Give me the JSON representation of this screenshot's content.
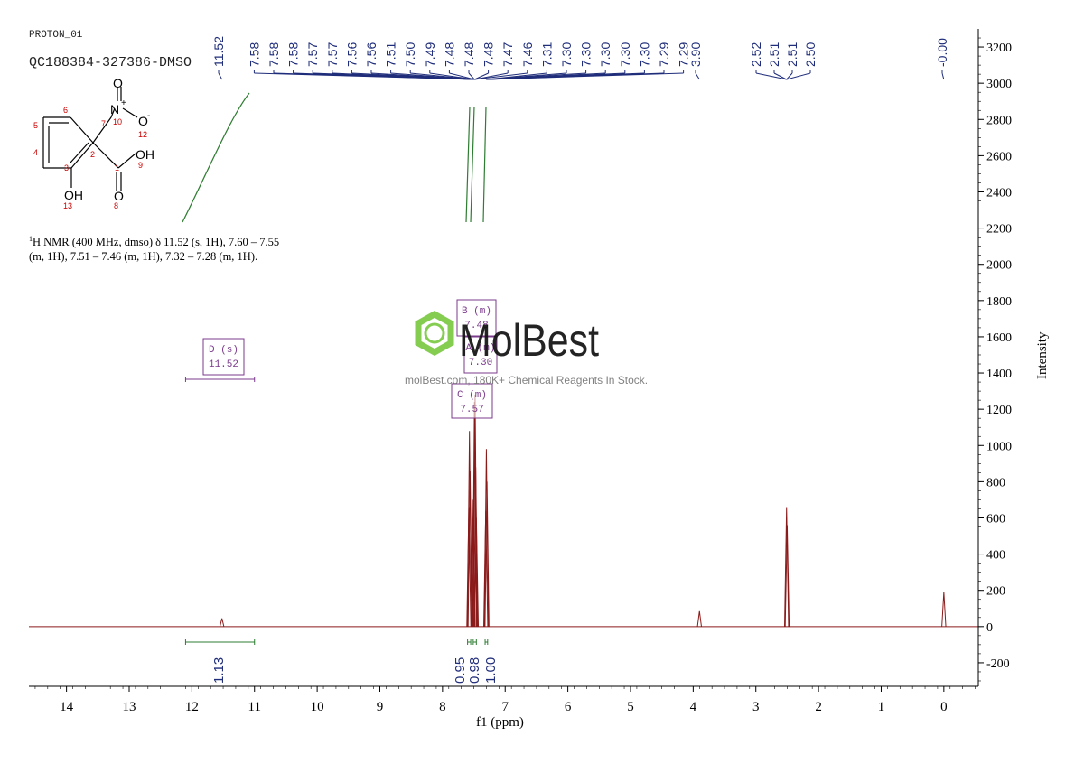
{
  "header": {
    "sample_name": "PROTON_01",
    "sample_id": "QC188384-327386-DMSO"
  },
  "structure": {
    "labels": [
      "O",
      "N",
      "+",
      "O",
      "-",
      "OH",
      "OH",
      "O"
    ],
    "atom_numbers": [
      "1",
      "2",
      "3",
      "4",
      "5",
      "6",
      "7",
      "8",
      "9",
      "10",
      "12",
      "13"
    ]
  },
  "nmr_text": {
    "line1_sup": "1",
    "line1": "H NMR (400 MHz, dmso) δ 11.52 (s, 1H), 7.60 – 7.55",
    "line2": "(m, 1H), 7.51 – 7.46 (m, 1H), 7.32 – 7.28 (m, 1H)."
  },
  "watermark": {
    "brand": "MolBest",
    "tagline": "molBest.com, 180K+ Chemical Reagents In Stock.",
    "color": "#7ac943"
  },
  "colors": {
    "spectrum": "#8b1a1a",
    "peak_labels": "#1f2d7a",
    "integral": "#2e7d32",
    "multiplet_box": "#7b3b8c",
    "axis": "#000000"
  },
  "chart_data": {
    "type": "line",
    "xlabel": "f1 (ppm)",
    "ylabel": "Intensity",
    "xlim": [
      14.6,
      -0.55
    ],
    "ylim": [
      -330,
      3300
    ],
    "x_ticks": [
      14,
      13,
      12,
      11,
      10,
      9,
      8,
      7,
      6,
      5,
      4,
      3,
      2,
      1,
      0
    ],
    "y_ticks": [
      -200,
      0,
      200,
      400,
      600,
      800,
      1000,
      1200,
      1400,
      1600,
      1800,
      2000,
      2200,
      2400,
      2600,
      2800,
      3000,
      3200
    ],
    "peaks": [
      {
        "ppm": 11.52,
        "height": 45
      },
      {
        "ppm": 7.58,
        "height": 660
      },
      {
        "ppm": 7.57,
        "height": 1080
      },
      {
        "ppm": 7.56,
        "height": 860
      },
      {
        "ppm": 7.51,
        "height": 700
      },
      {
        "ppm": 7.49,
        "height": 1240
      },
      {
        "ppm": 7.48,
        "height": 1280
      },
      {
        "ppm": 7.47,
        "height": 880
      },
      {
        "ppm": 7.46,
        "height": 600
      },
      {
        "ppm": 7.31,
        "height": 640
      },
      {
        "ppm": 7.3,
        "height": 980
      },
      {
        "ppm": 7.29,
        "height": 800
      },
      {
        "ppm": 3.9,
        "height": 85
      },
      {
        "ppm": 2.51,
        "height": 660
      },
      {
        "ppm": 2.5,
        "height": 560
      },
      {
        "ppm": 0.0,
        "height": 190
      }
    ],
    "peak_labels": {
      "left": [
        "11.52"
      ],
      "aromatic": [
        "7.58",
        "7.58",
        "7.58",
        "7.57",
        "7.57",
        "7.56",
        "7.56",
        "7.51",
        "7.50",
        "7.49",
        "7.48",
        "7.48",
        "7.48",
        "7.47",
        "7.46",
        "7.31",
        "7.30",
        "7.30",
        "7.30",
        "7.30",
        "7.30",
        "7.29",
        "7.29"
      ],
      "water": [
        "3.90"
      ],
      "dmso": [
        "2.52",
        "2.51",
        "2.51",
        "2.50"
      ],
      "tms": [
        "-0.00"
      ]
    },
    "multiplets": [
      {
        "letter": "D (s)",
        "shift": "11.52",
        "range": [
          12.1,
          11.0
        ]
      },
      {
        "letter": "B (m)",
        "shift": "7.48"
      },
      {
        "letter": "A (m)",
        "shift": "7.30"
      },
      {
        "letter": "C (m)",
        "shift": "7.57"
      }
    ],
    "integrals": [
      {
        "value": "1.13",
        "range": [
          12.1,
          11.0
        ]
      },
      {
        "value": "0.95",
        "range": [
          7.6,
          7.55
        ]
      },
      {
        "value": "0.98",
        "range": [
          7.51,
          7.46
        ]
      },
      {
        "value": "1.00",
        "range": [
          7.32,
          7.28
        ]
      }
    ]
  }
}
